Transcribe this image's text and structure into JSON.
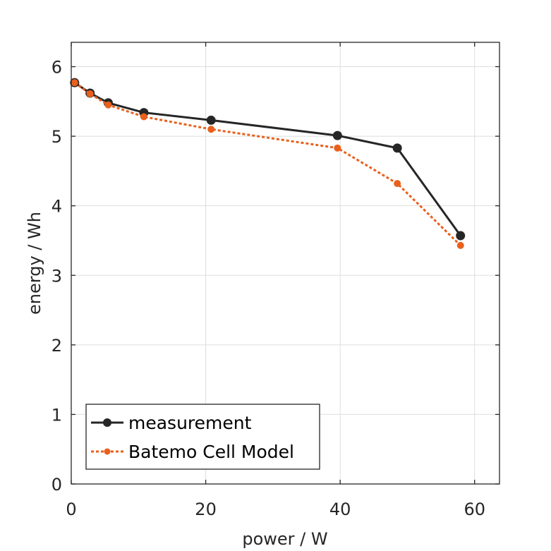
{
  "chart_data": {
    "type": "line",
    "title": "",
    "xlabel": "power / W",
    "ylabel": "energy / Wh",
    "xlim": [
      0,
      63.7
    ],
    "ylim": [
      0,
      6.35
    ],
    "xticks": [
      0,
      20,
      40,
      60
    ],
    "yticks": [
      0,
      1,
      2,
      3,
      4,
      5,
      6
    ],
    "xtick_labels": [
      "0",
      "20",
      "40",
      "60"
    ],
    "ytick_labels": [
      "0",
      "1",
      "2",
      "3",
      "4",
      "5",
      "6"
    ],
    "grid": true,
    "legend_position": "bottom-left",
    "series": [
      {
        "name": "measurement",
        "color": "#262626",
        "line_style": "solid",
        "marker": "circle",
        "x": [
          0.5,
          2.8,
          5.5,
          10.8,
          20.8,
          39.6,
          48.5,
          57.9
        ],
        "y": [
          5.77,
          5.62,
          5.48,
          5.34,
          5.23,
          5.01,
          4.83,
          3.57
        ]
      },
      {
        "name": "Batemo Cell Model",
        "color": "#e8601c",
        "line_style": "dotted",
        "marker": "circle",
        "x": [
          0.5,
          2.8,
          5.5,
          10.8,
          20.8,
          39.6,
          48.5,
          57.9
        ],
        "y": [
          5.77,
          5.61,
          5.45,
          5.28,
          5.1,
          4.83,
          4.32,
          3.43
        ]
      }
    ]
  }
}
